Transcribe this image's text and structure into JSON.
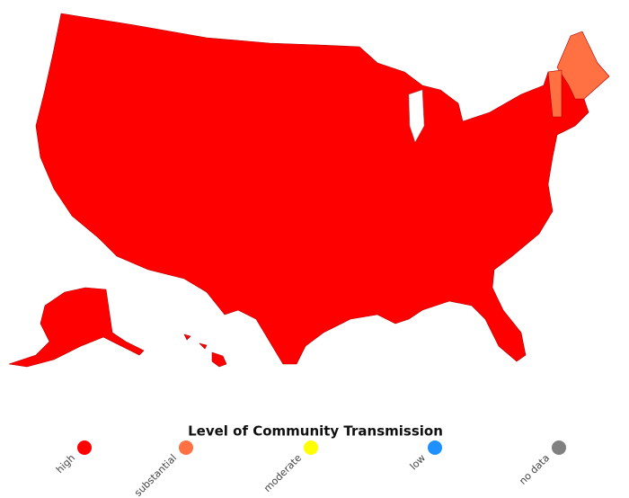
{
  "legend": {
    "title": "Level of Community Transmission",
    "items": [
      {
        "label": "high",
        "color": "#ff0000"
      },
      {
        "label": "substantial",
        "color": "#ff7043"
      },
      {
        "label": "moderate",
        "color": "#ffff00"
      },
      {
        "label": "low",
        "color": "#1e90ff"
      },
      {
        "label": "no data",
        "color": "#808080"
      }
    ]
  }
}
